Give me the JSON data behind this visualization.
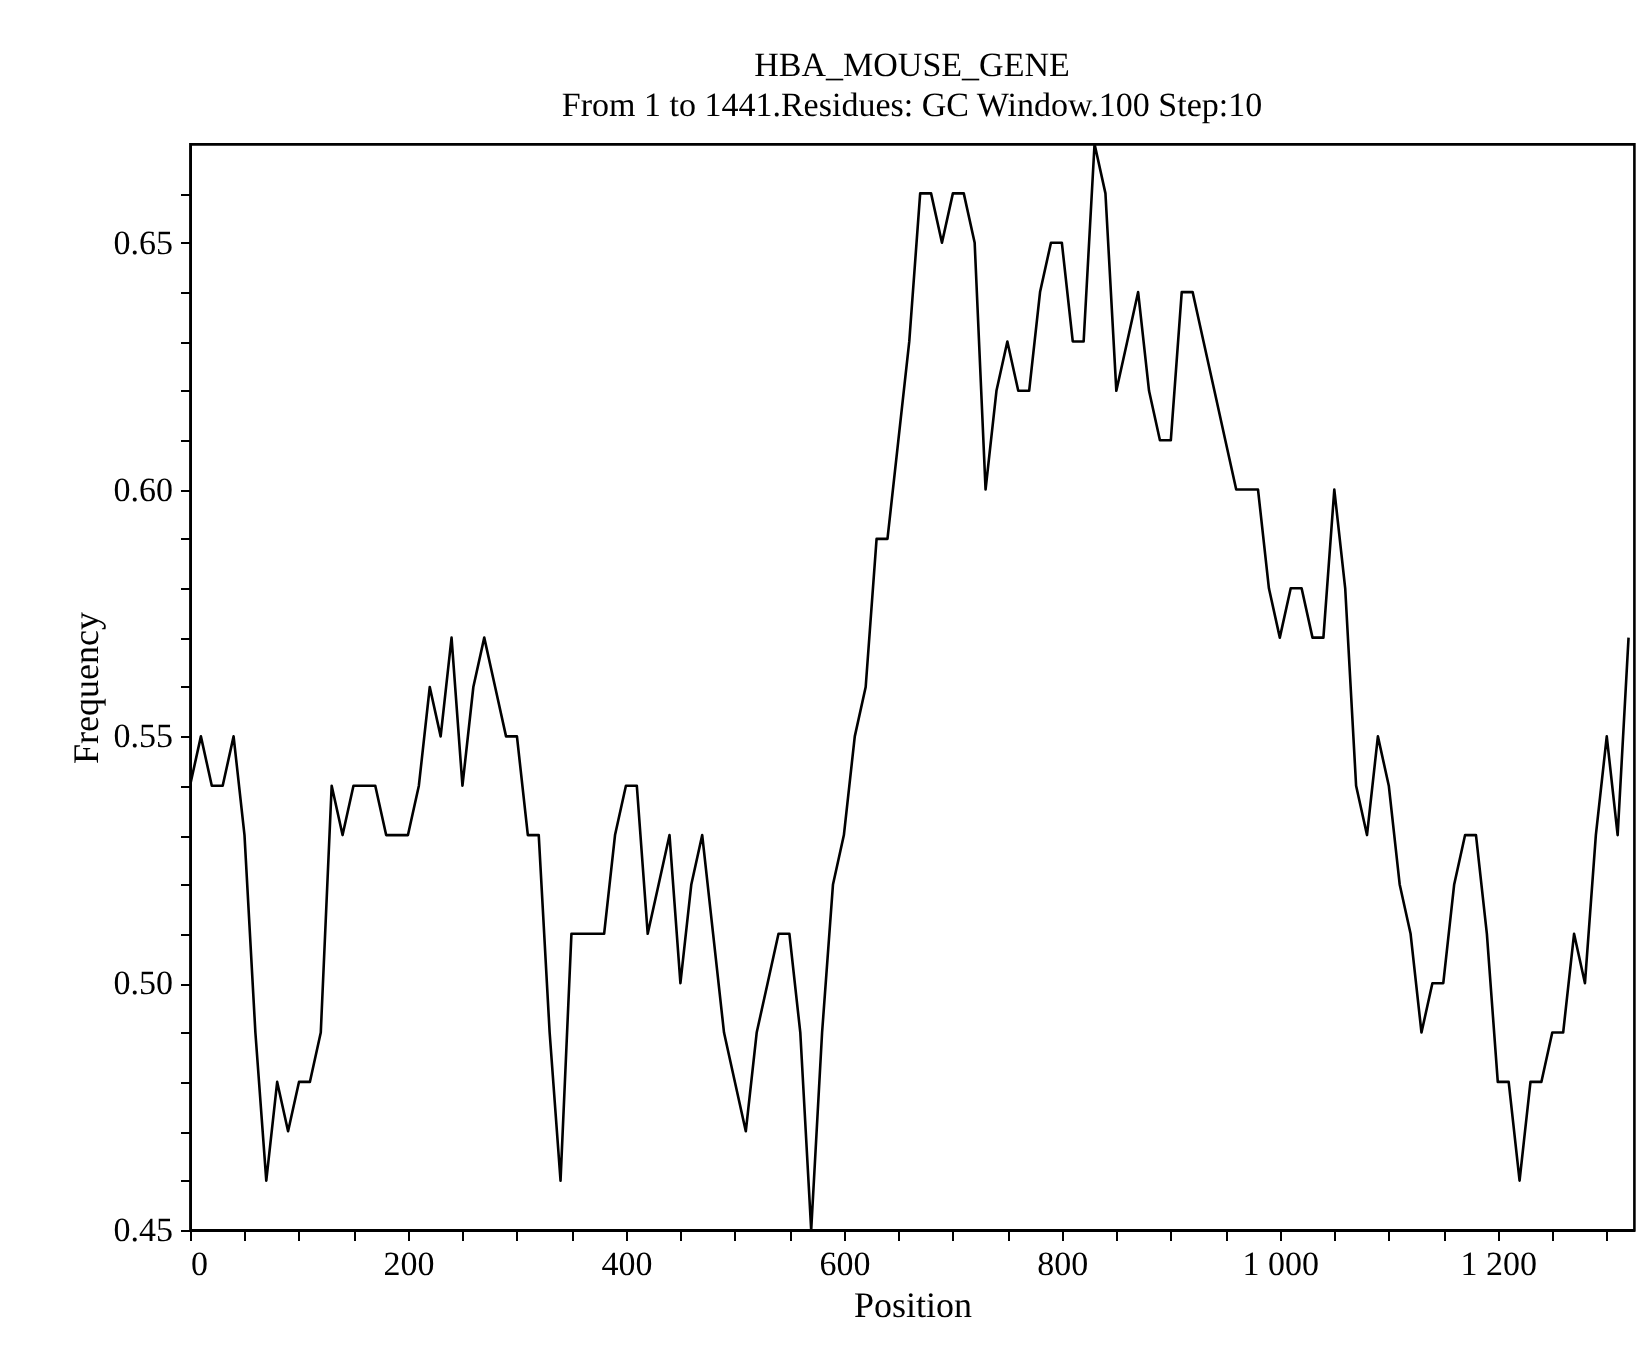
{
  "chart_data": {
    "type": "line",
    "title": "HBA_MOUSE_GENE",
    "subtitle": "From 1 to 1441.Residues: GC Window.100 Step:10",
    "xlabel": "Position",
    "ylabel": "Frequency",
    "x": [
      0,
      10,
      20,
      30,
      40,
      50,
      60,
      70,
      80,
      90,
      100,
      110,
      120,
      130,
      140,
      150,
      160,
      170,
      180,
      190,
      200,
      210,
      220,
      230,
      240,
      250,
      260,
      270,
      280,
      290,
      300,
      310,
      320,
      330,
      340,
      350,
      360,
      370,
      380,
      390,
      400,
      410,
      420,
      430,
      440,
      450,
      460,
      470,
      480,
      490,
      500,
      510,
      520,
      530,
      540,
      550,
      560,
      570,
      580,
      590,
      600,
      610,
      620,
      630,
      640,
      650,
      660,
      670,
      680,
      690,
      700,
      710,
      720,
      730,
      740,
      750,
      760,
      770,
      780,
      790,
      800,
      810,
      820,
      830,
      840,
      850,
      860,
      870,
      880,
      890,
      900,
      910,
      920,
      930,
      940,
      950,
      960,
      970,
      980,
      990,
      1000,
      1010,
      1020,
      1030,
      1040,
      1050,
      1060,
      1070,
      1080,
      1090,
      1100,
      1110,
      1120,
      1130,
      1140,
      1150,
      1160,
      1170,
      1180,
      1190,
      1200,
      1210,
      1220,
      1230,
      1240,
      1250,
      1260,
      1270,
      1280,
      1290,
      1300,
      1310,
      1320
    ],
    "series": [
      {
        "color": "#000000",
        "values": [
          0.54,
          0.55,
          0.54,
          0.54,
          0.55,
          0.53,
          0.49,
          0.46,
          0.48,
          0.47,
          0.48,
          0.48,
          0.49,
          0.54,
          0.53,
          0.54,
          0.54,
          0.54,
          0.53,
          0.53,
          0.53,
          0.54,
          0.56,
          0.55,
          0.57,
          0.54,
          0.56,
          0.57,
          0.56,
          0.55,
          0.55,
          0.53,
          0.53,
          0.49,
          0.46,
          0.51,
          0.51,
          0.51,
          0.51,
          0.53,
          0.54,
          0.54,
          0.51,
          0.52,
          0.53,
          0.5,
          0.52,
          0.53,
          0.51,
          0.49,
          0.48,
          0.47,
          0.49,
          0.5,
          0.51,
          0.51,
          0.49,
          0.45,
          0.49,
          0.52,
          0.53,
          0.55,
          0.56,
          0.59,
          0.59,
          0.61,
          0.63,
          0.66,
          0.66,
          0.65,
          0.66,
          0.66,
          0.65,
          0.6,
          0.62,
          0.63,
          0.62,
          0.62,
          0.64,
          0.65,
          0.65,
          0.63,
          0.63,
          0.67,
          0.66,
          0.62,
          0.63,
          0.64,
          0.62,
          0.61,
          0.61,
          0.64,
          0.64,
          0.63,
          0.62,
          0.61,
          0.6,
          0.6,
          0.6,
          0.58,
          0.57,
          0.58,
          0.58,
          0.57,
          0.57,
          0.6,
          0.58,
          0.54,
          0.53,
          0.55,
          0.54,
          0.52,
          0.51,
          0.49,
          0.5,
          0.5,
          0.52,
          0.53,
          0.53,
          0.51,
          0.48,
          0.48,
          0.46,
          0.48,
          0.48,
          0.49,
          0.49,
          0.51,
          0.5,
          0.53,
          0.55,
          0.53,
          0.57
        ]
      }
    ],
    "xlim": [
      0,
      1325
    ],
    "xticks": [
      {
        "value": 0,
        "label": "0"
      },
      {
        "value": 50,
        "label": null
      },
      {
        "value": 100,
        "label": null
      },
      {
        "value": 150,
        "label": null
      },
      {
        "value": 200,
        "label": "200"
      },
      {
        "value": 250,
        "label": null
      },
      {
        "value": 300,
        "label": null
      },
      {
        "value": 350,
        "label": null
      },
      {
        "value": 400,
        "label": "400"
      },
      {
        "value": 450,
        "label": null
      },
      {
        "value": 500,
        "label": null
      },
      {
        "value": 550,
        "label": null
      },
      {
        "value": 600,
        "label": "600"
      },
      {
        "value": 650,
        "label": null
      },
      {
        "value": 700,
        "label": null
      },
      {
        "value": 750,
        "label": null
      },
      {
        "value": 800,
        "label": "800"
      },
      {
        "value": 850,
        "label": null
      },
      {
        "value": 900,
        "label": null
      },
      {
        "value": 950,
        "label": null
      },
      {
        "value": 1000,
        "label": "1 000"
      },
      {
        "value": 1050,
        "label": null
      },
      {
        "value": 1100,
        "label": null
      },
      {
        "value": 1150,
        "label": null
      },
      {
        "value": 1200,
        "label": "1 200"
      },
      {
        "value": 1250,
        "label": null
      },
      {
        "value": 1300,
        "label": null
      }
    ],
    "ylim": [
      0.45,
      0.67
    ],
    "yticks": [
      {
        "value": 0.45,
        "label": "0.45"
      },
      {
        "value": 0.46,
        "label": null
      },
      {
        "value": 0.47,
        "label": null
      },
      {
        "value": 0.48,
        "label": null
      },
      {
        "value": 0.49,
        "label": null
      },
      {
        "value": 0.5,
        "label": "0.50"
      },
      {
        "value": 0.51,
        "label": null
      },
      {
        "value": 0.52,
        "label": null
      },
      {
        "value": 0.53,
        "label": null
      },
      {
        "value": 0.54,
        "label": null
      },
      {
        "value": 0.55,
        "label": "0.55"
      },
      {
        "value": 0.56,
        "label": null
      },
      {
        "value": 0.57,
        "label": null
      },
      {
        "value": 0.58,
        "label": null
      },
      {
        "value": 0.59,
        "label": null
      },
      {
        "value": 0.6,
        "label": "0.60"
      },
      {
        "value": 0.61,
        "label": null
      },
      {
        "value": 0.62,
        "label": null
      },
      {
        "value": 0.63,
        "label": null
      },
      {
        "value": 0.64,
        "label": null
      },
      {
        "value": 0.65,
        "label": "0.65"
      },
      {
        "value": 0.66,
        "label": null
      }
    ],
    "grid": false,
    "marker": "none",
    "line_style": "solid"
  }
}
